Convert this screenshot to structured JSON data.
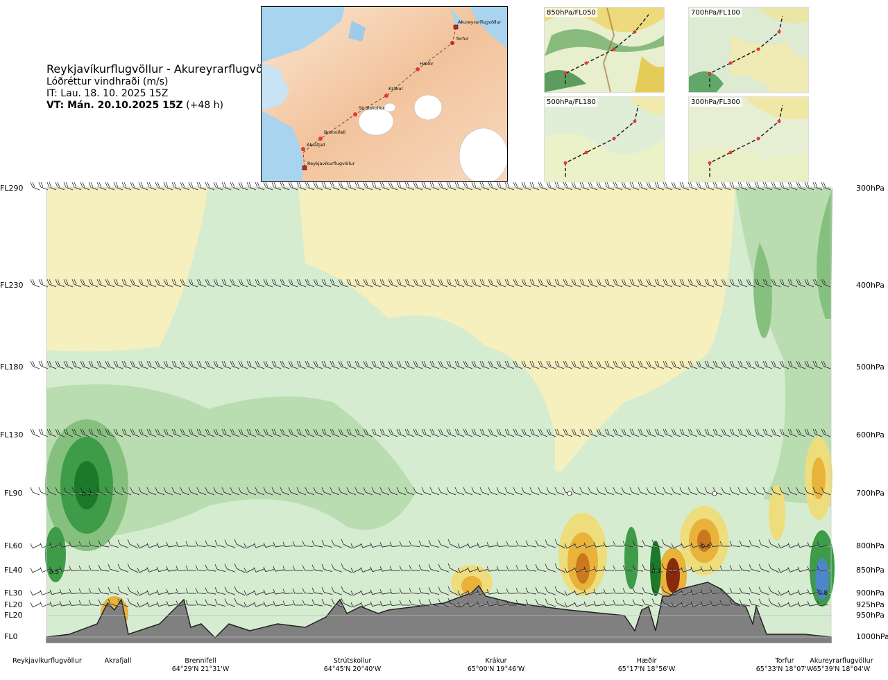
{
  "header": {
    "route": "Reykjavíkurflugvöllur - Akureyrarflugvöllur",
    "parameter": "Lóðréttur vindhraði (m/s)",
    "issue_time": "IT: Lau. 18. 10. 2025 15Z",
    "valid_time_label": "VT: Mán. 20.10.2025 15Z",
    "valid_time_offset": "(+48 h)"
  },
  "map": {
    "waypoints": [
      "Akureyrarflugvöllur",
      "Torfur",
      "Hæðir",
      "Krákur",
      "Strútskollur",
      "Brennifell",
      "Akrafjall",
      "Reykjavíkurflugvöllur"
    ]
  },
  "thumbnails": [
    {
      "label": "850hPa/FL050"
    },
    {
      "label": "700hPa/FL100"
    },
    {
      "label": "500hPa/FL180"
    },
    {
      "label": "300hPa/FL300"
    }
  ],
  "chart_data": {
    "type": "heatmap",
    "title": "Lóðréttur vindhraði (m/s)",
    "xlabel": "",
    "ylabel": "",
    "levels_left": [
      "FL290",
      "FL230",
      "FL180",
      "FL130",
      "FL90",
      "FL60",
      "FL40",
      "FL30",
      "FL20",
      "FL20",
      "FL0"
    ],
    "levels_right": [
      "300hPa",
      "400hPa",
      "500hPa",
      "600hPa",
      "700hPa",
      "800hPa",
      "850hPa",
      "900hPa",
      "925hPa",
      "950hPa",
      "1000hPa"
    ],
    "pressure_levels": [
      300,
      400,
      500,
      600,
      700,
      800,
      850,
      900,
      925,
      950,
      1000
    ],
    "annotations": [
      "0.7",
      "0.5",
      "-0.6",
      "0.7",
      "0.8"
    ],
    "locations": [
      {
        "name": "Reykjavíkurflugvöllur",
        "coord": ""
      },
      {
        "name": "Akrafjall",
        "coord": ""
      },
      {
        "name": "Brennifell",
        "coord": "64°29'N 21°31'W"
      },
      {
        "name": "Strútskollur",
        "coord": "64°45'N 20°40'W"
      },
      {
        "name": "Krákur",
        "coord": "65°00'N 19°46'W"
      },
      {
        "name": "Hæðir",
        "coord": "65°17'N 18°56'W"
      },
      {
        "name": "Torfur",
        "coord": "65°33'N 18°07'W"
      },
      {
        "name": "Akureyrarflugvöllur",
        "coord": "65°39'N 18°04'W"
      }
    ],
    "colors": {
      "strong_up": "#1a7a2a",
      "mod_up": "#3e9b47",
      "weak_up": "#86c07e",
      "very_weak_up": "#b9ddb1",
      "calm_up": "#d6ecd1",
      "calm_down": "#f6efbe",
      "weak_down": "#eddd7c",
      "mod_down": "#e9b23a",
      "strong_down": "#c9781d",
      "very_strong_down": "#8a2a0d",
      "blue_cell": "#4d86c9",
      "terrain": "#808080"
    }
  }
}
